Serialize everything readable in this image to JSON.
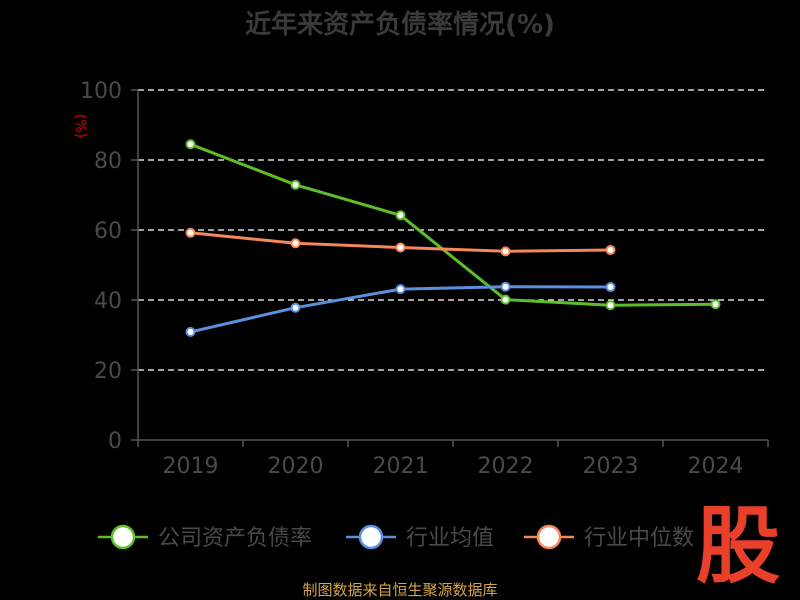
{
  "chart_data": {
    "type": "line",
    "title": "近年来资产负债率情况(%)",
    "unit_label": "(%)",
    "categories": [
      "2019",
      "2020",
      "2021",
      "2022",
      "2023",
      "2024"
    ],
    "ylim": [
      0,
      100
    ],
    "yticks": [
      "0",
      "20",
      "40",
      "60",
      "80",
      "100"
    ],
    "grid": true,
    "legend_position": "bottom",
    "series": [
      {
        "name": "公司资产负债率",
        "color": "#5cbf2a",
        "values": [
          84.5,
          72.9,
          64.2,
          40.1,
          38.5,
          38.8
        ]
      },
      {
        "name": "行业均值",
        "color": "#5b8fe0",
        "values": [
          30.9,
          37.8,
          43.1,
          43.8,
          43.7,
          null
        ]
      },
      {
        "name": "行业中位数",
        "color": "#f5875a",
        "values": [
          59.2,
          56.2,
          55.0,
          53.9,
          54.3,
          null
        ]
      }
    ]
  },
  "source_text": "制图数据来自恒生聚源数据库",
  "watermark_text": "股"
}
